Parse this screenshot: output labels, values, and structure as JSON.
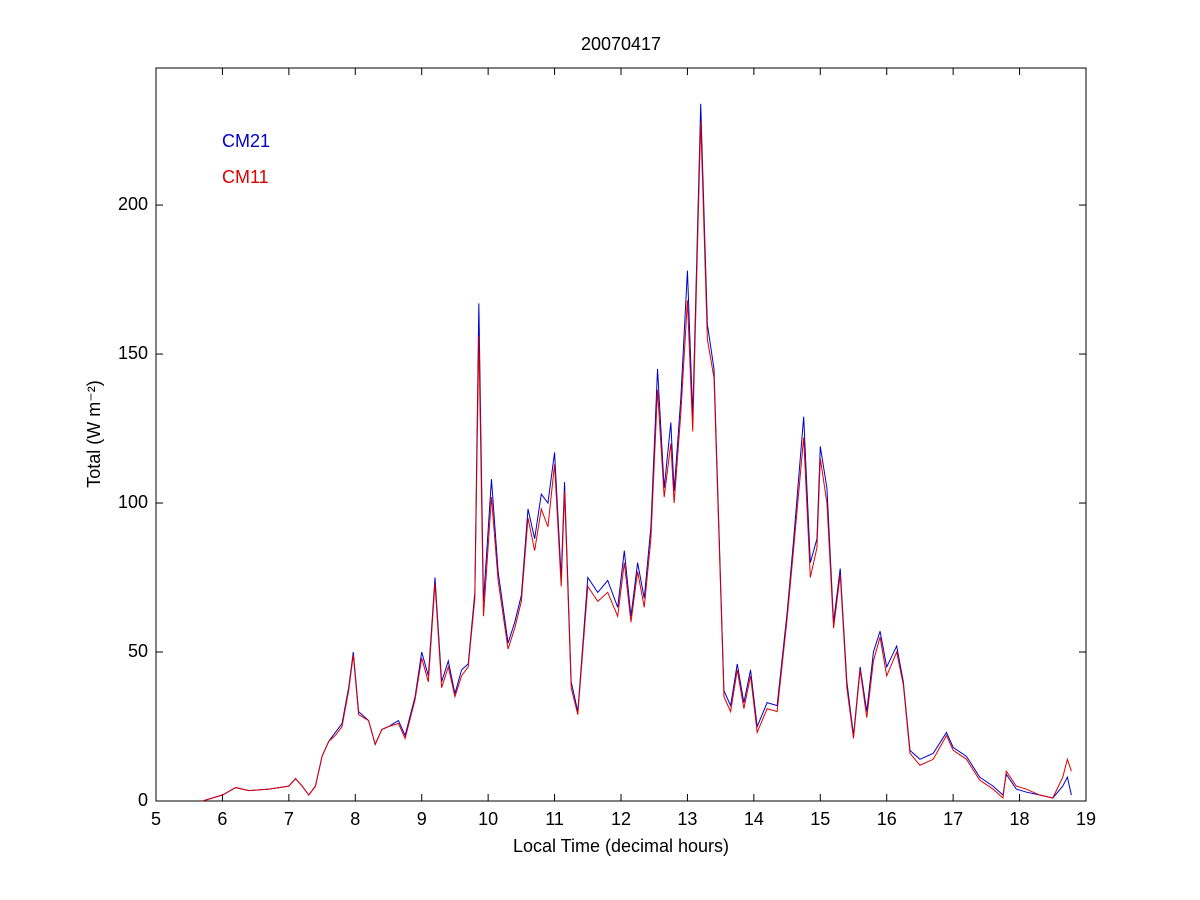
{
  "chart_data": {
    "type": "line",
    "title": "20070417",
    "xlabel": "Local Time (decimal hours)",
    "ylabel": "Total (W m⁻²)",
    "x": [
      5.7,
      6.0,
      6.2,
      6.4,
      6.7,
      7.0,
      7.1,
      7.2,
      7.3,
      7.4,
      7.5,
      7.6,
      7.7,
      7.8,
      7.9,
      7.97,
      8.05,
      8.2,
      8.3,
      8.4,
      8.5,
      8.65,
      8.75,
      8.9,
      9.0,
      9.1,
      9.2,
      9.3,
      9.4,
      9.5,
      9.6,
      9.7,
      9.8,
      9.86,
      9.93,
      10.05,
      10.15,
      10.3,
      10.4,
      10.5,
      10.6,
      10.7,
      10.8,
      10.9,
      11.0,
      11.1,
      11.15,
      11.25,
      11.35,
      11.5,
      11.65,
      11.8,
      11.95,
      12.05,
      12.15,
      12.25,
      12.35,
      12.45,
      12.55,
      12.65,
      12.75,
      12.8,
      12.9,
      13.0,
      13.08,
      13.2,
      13.3,
      13.4,
      13.55,
      13.65,
      13.75,
      13.85,
      13.95,
      14.05,
      14.2,
      14.35,
      14.5,
      14.6,
      14.75,
      14.85,
      14.95,
      15.0,
      15.1,
      15.2,
      15.3,
      15.4,
      15.5,
      15.6,
      15.7,
      15.8,
      15.9,
      16.0,
      16.15,
      16.25,
      16.35,
      16.5,
      16.7,
      16.9,
      17.0,
      17.2,
      17.4,
      17.6,
      17.75,
      17.8,
      17.95,
      18.1,
      18.3,
      18.5,
      18.65,
      18.72,
      18.78
    ],
    "series": [
      {
        "name": "CM21",
        "color": "#0000cc",
        "values": [
          0,
          2,
          4.5,
          3.5,
          4,
          5,
          7.5,
          5,
          2,
          5,
          15,
          20,
          23,
          26,
          38,
          50,
          30,
          27,
          19,
          24,
          25,
          27,
          22,
          35,
          50,
          42,
          75,
          40,
          47,
          36,
          44,
          46,
          70,
          167,
          67,
          108,
          77,
          53,
          60,
          69,
          98,
          88,
          103,
          100,
          117,
          75,
          107,
          40,
          30,
          75,
          70,
          74,
          65,
          84,
          62,
          80,
          68,
          92,
          145,
          105,
          127,
          104,
          135,
          178,
          129,
          234,
          160,
          145,
          37,
          32,
          46,
          33,
          44,
          25,
          33,
          32,
          63,
          88,
          129,
          80,
          88,
          119,
          105,
          60,
          78,
          40,
          22,
          45,
          30,
          50,
          57,
          45,
          52,
          40,
          17,
          14,
          16,
          23,
          18,
          15,
          8,
          5,
          2,
          9,
          4,
          3,
          2,
          1,
          5,
          8,
          2
        ]
      },
      {
        "name": "CM11",
        "color": "#dd0000",
        "values": [
          0,
          2,
          4.5,
          3.5,
          4,
          5,
          7.5,
          5,
          2,
          5,
          15,
          20,
          22,
          25,
          37,
          49,
          29,
          27,
          19,
          24,
          25,
          26,
          21,
          34,
          48,
          40,
          73,
          38,
          45,
          35,
          42,
          45,
          68,
          156,
          62,
          102,
          74,
          51,
          58,
          67,
          95,
          84,
          98,
          92,
          113,
          72,
          104,
          38,
          29,
          72,
          67,
          70,
          62,
          80,
          60,
          77,
          65,
          88,
          138,
          102,
          120,
          100,
          130,
          168,
          124,
          228,
          155,
          142,
          35,
          30,
          44,
          31,
          42,
          23,
          31,
          30,
          61,
          85,
          122,
          75,
          85,
          115,
          100,
          58,
          76,
          38,
          21,
          44,
          28,
          47,
          55,
          42,
          50,
          39,
          16,
          12,
          14,
          22,
          17,
          14,
          7,
          4,
          1,
          10,
          5,
          4,
          2,
          1,
          8,
          14,
          10
        ]
      }
    ],
    "xlim": [
      5,
      19
    ],
    "xticks": [
      5,
      6,
      7,
      8,
      9,
      10,
      11,
      12,
      13,
      14,
      15,
      16,
      17,
      18,
      19
    ],
    "ylim": [
      0,
      246
    ],
    "yticks": [
      0,
      50,
      100,
      150,
      200
    ],
    "grid": false,
    "legend": "upper left"
  }
}
